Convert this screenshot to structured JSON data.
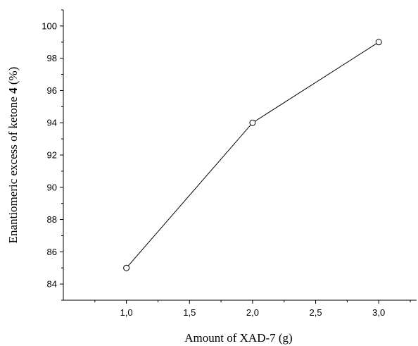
{
  "chart_data": {
    "type": "line",
    "xlabel": "Amount of XAD-7 (g)",
    "ylabel_prefix": "Enantiomeric excess of ketone ",
    "ylabel_bold": "4",
    "ylabel_suffix": " (%)",
    "xlim": [
      0.5,
      3.3
    ],
    "ylim": [
      83,
      101
    ],
    "x_ticks": [
      1.0,
      1.5,
      2.0,
      2.5,
      3.0
    ],
    "x_tick_labels": [
      "1,0",
      "1,5",
      "2,0",
      "2,5",
      "3,0"
    ],
    "y_ticks": [
      84,
      86,
      88,
      90,
      92,
      94,
      96,
      98,
      100
    ],
    "y_tick_labels": [
      "84",
      "86",
      "88",
      "90",
      "92",
      "94",
      "96",
      "98",
      "100"
    ],
    "grid": false,
    "series": [
      {
        "x": [
          1.0,
          2.0,
          3.0
        ],
        "values": [
          85,
          94,
          99
        ],
        "marker": "open-circle",
        "color": "#000000"
      }
    ]
  }
}
